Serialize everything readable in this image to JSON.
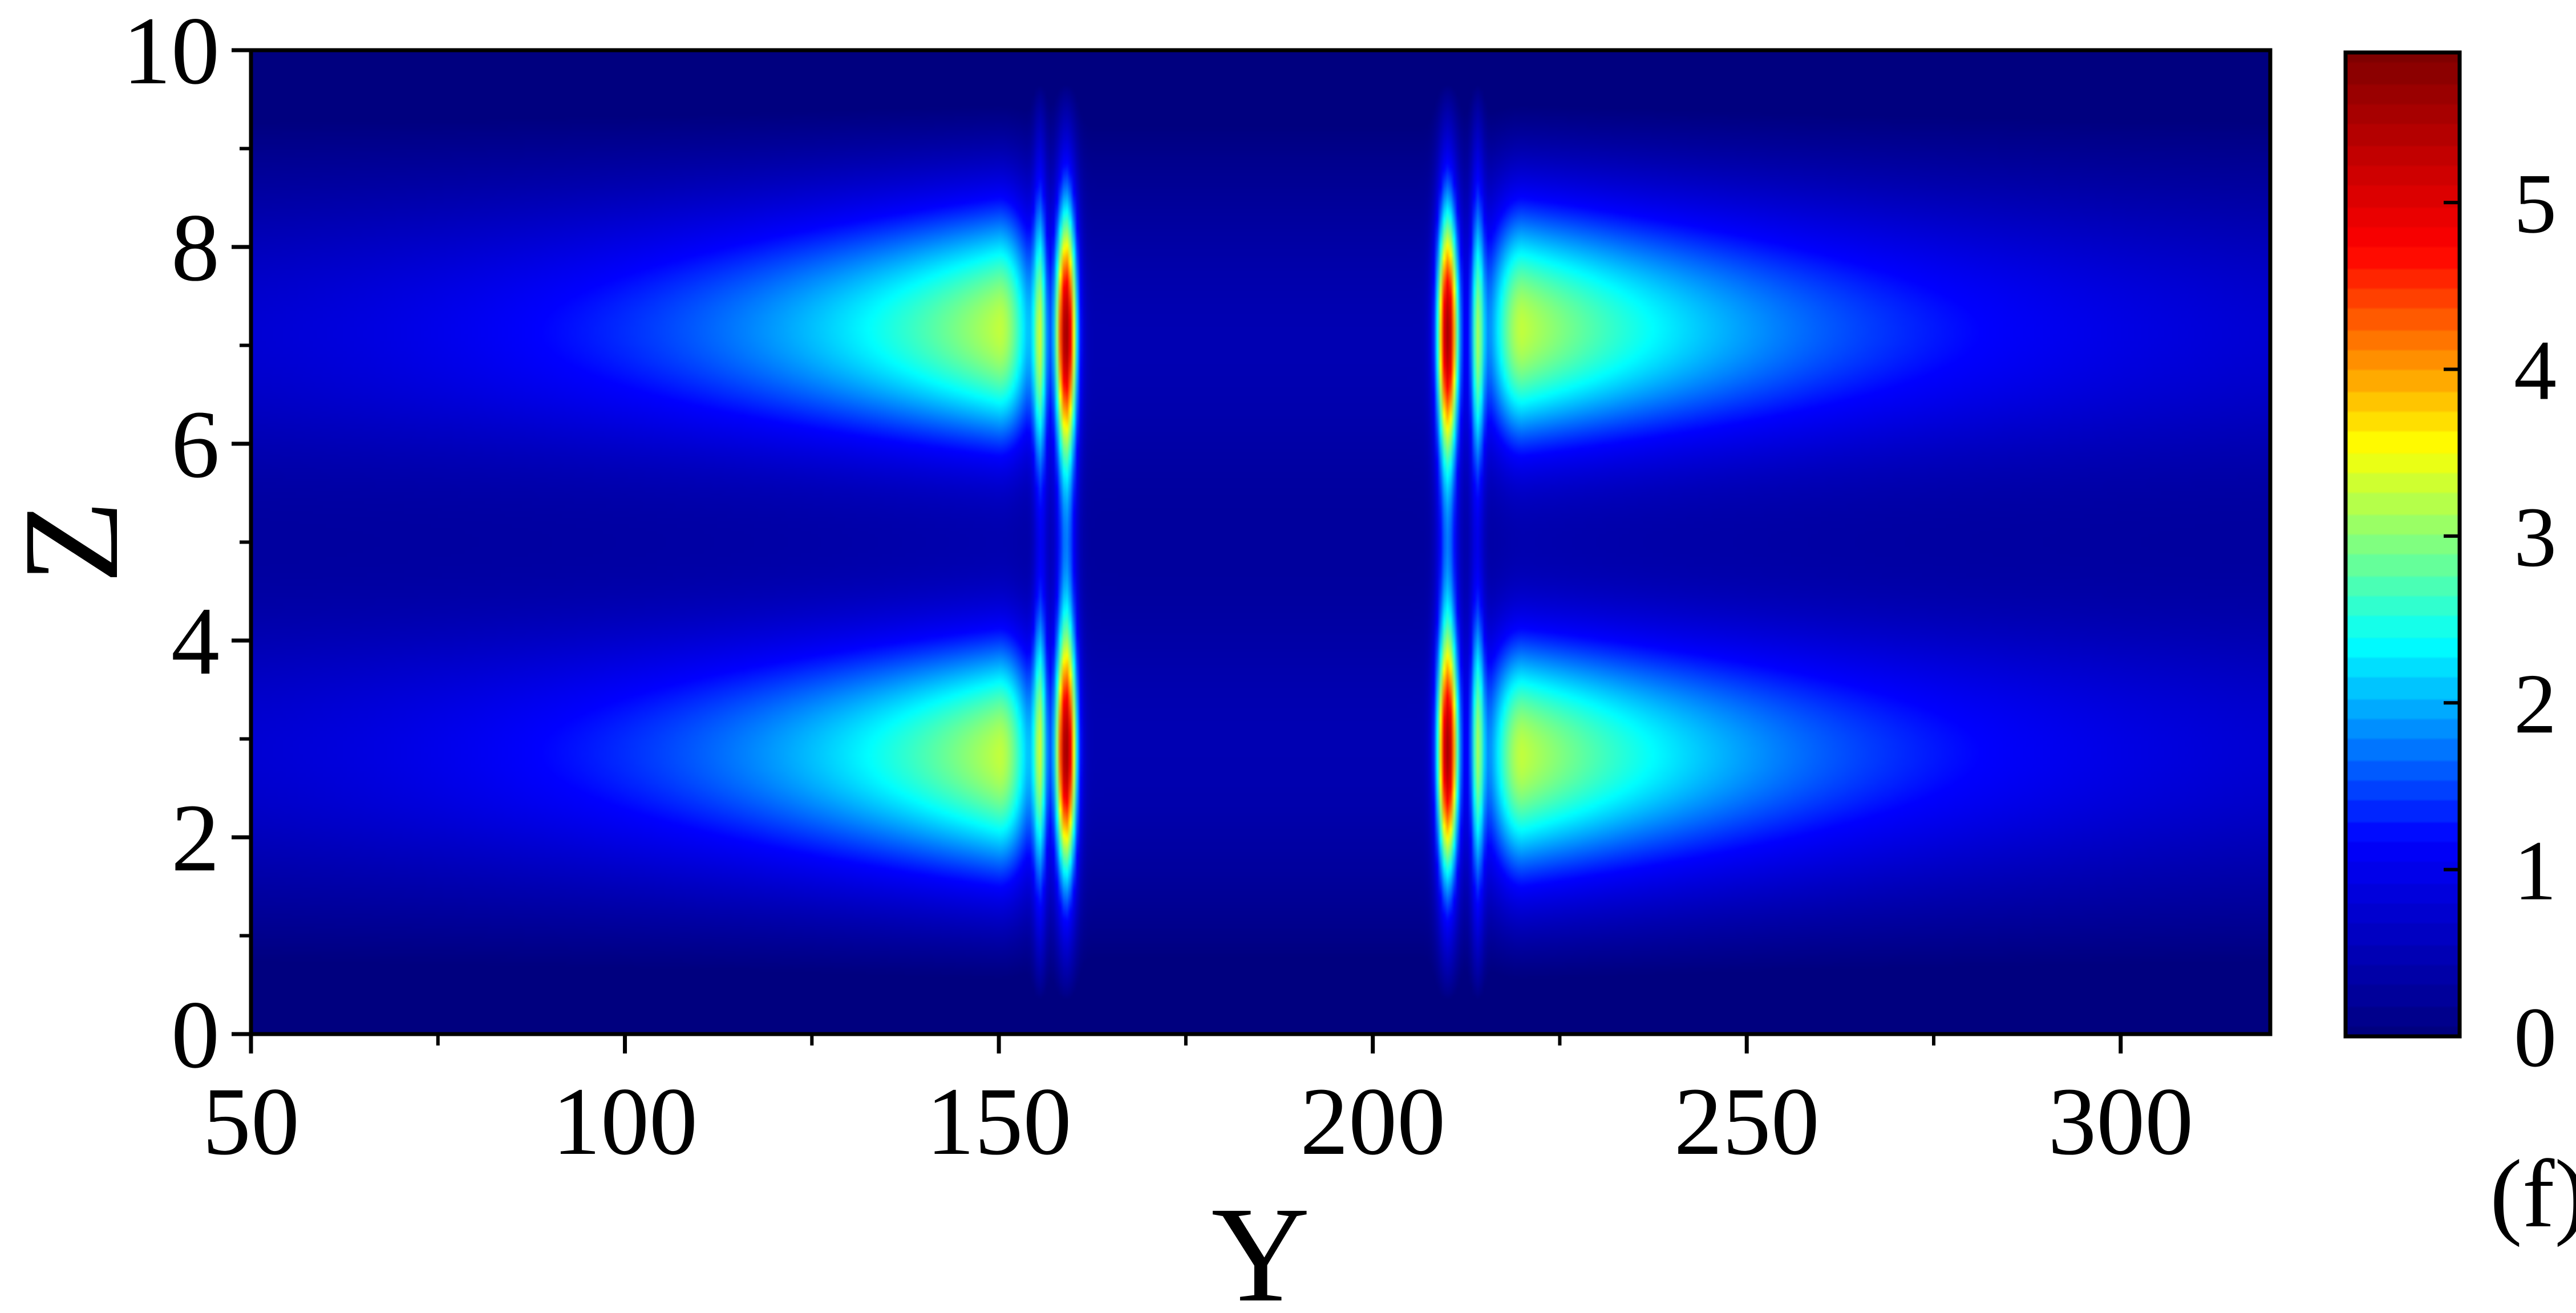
{
  "chart_data": {
    "type": "heatmap",
    "title": "",
    "xlabel": "Y",
    "ylabel": "Z",
    "panel_label": "(f)",
    "xlim": [
      50,
      320
    ],
    "ylim": [
      0,
      10
    ],
    "x_ticks": [
      50,
      100,
      150,
      200,
      250,
      300
    ],
    "x_tick_labels": [
      "50",
      "100",
      "150",
      "200",
      "250",
      "300"
    ],
    "x_minor_ticks": [
      75,
      125,
      175,
      225,
      275
    ],
    "y_ticks": [
      0,
      2,
      4,
      6,
      8,
      10
    ],
    "y_tick_labels": [
      "0",
      "2",
      "4",
      "6",
      "8",
      "10"
    ],
    "y_minor_ticks": [
      1,
      3,
      5,
      7,
      9
    ],
    "grid": false,
    "colorbar": {
      "range": [
        0,
        5.9
      ],
      "ticks": [
        0,
        1,
        2,
        3,
        4,
        5
      ],
      "tick_labels": [
        "0",
        "1",
        "2",
        "3",
        "4",
        "5"
      ],
      "colormap": "jet",
      "placement": "right"
    },
    "colormap_stops": [
      "#00007f",
      "#0000ff",
      "#00ffff",
      "#ffff00",
      "#ff0000",
      "#7f0000"
    ],
    "features": {
      "ridge_lines_y": [
        159,
        210
      ],
      "ridge_halfwidth_y": 1.4,
      "ridge_peak": 5.8,
      "ridge_peak_z": [
        2.75,
        7.25
      ],
      "ridge_extent_z": [
        0.3,
        9.7
      ],
      "side_lines_y": [
        155.5,
        214
      ],
      "side_line_peak": 2.3,
      "lobes_center_y": [
        150,
        220
      ],
      "lobes_peak": 4.2,
      "lobes_decay_y": 45,
      "background_level": 0.6,
      "background_min_z": 5.0,
      "background_min_level": 0.25
    }
  }
}
